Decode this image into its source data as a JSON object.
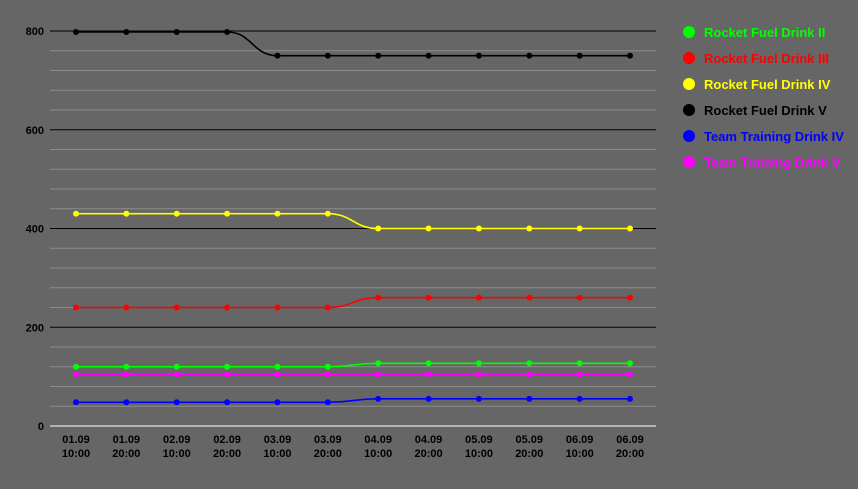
{
  "chart_data": {
    "type": "line",
    "title": "",
    "xlabel": "",
    "ylabel": "",
    "ylim": [
      0,
      800
    ],
    "y_ticks": [
      "0",
      "200",
      "400",
      "600",
      "800"
    ],
    "minor_grid_step": 40,
    "grid": true,
    "background": "#666666",
    "legend_position": "right",
    "categories": [
      [
        "01.09",
        "10:00"
      ],
      [
        "01.09",
        "20:00"
      ],
      [
        "02.09",
        "10:00"
      ],
      [
        "02.09",
        "20:00"
      ],
      [
        "03.09",
        "10:00"
      ],
      [
        "03.09",
        "20:00"
      ],
      [
        "04.09",
        "10:00"
      ],
      [
        "04.09",
        "20:00"
      ],
      [
        "05.09",
        "10:00"
      ],
      [
        "05.09",
        "20:00"
      ],
      [
        "06.09",
        "10:00"
      ],
      [
        "06.09",
        "20:00"
      ]
    ],
    "series": [
      {
        "name": "Rocket Fuel Drink II",
        "color": "#00ff00",
        "values": [
          120,
          120,
          120,
          120,
          120,
          120,
          127,
          127,
          127,
          127,
          127,
          127
        ]
      },
      {
        "name": "Rocket Fuel Drink III",
        "color": "#ff0000",
        "values": [
          240,
          240,
          240,
          240,
          240,
          240,
          260,
          260,
          260,
          260,
          260,
          260
        ]
      },
      {
        "name": "Rocket Fuel Drink IV",
        "color": "#ffff00",
        "values": [
          430,
          430,
          430,
          430,
          430,
          430,
          400,
          400,
          400,
          400,
          400,
          400
        ]
      },
      {
        "name": "Rocket Fuel Drink V",
        "color": "#000000",
        "values": [
          798,
          798,
          798,
          798,
          750,
          750,
          750,
          750,
          750,
          750,
          750,
          750
        ]
      },
      {
        "name": "Team Training Drink IV",
        "color": "#0000ff",
        "values": [
          48,
          48,
          48,
          48,
          48,
          48,
          55,
          55,
          55,
          55,
          55,
          55
        ]
      },
      {
        "name": "Team Training Drink V",
        "color": "#ff00ff",
        "values": [
          105,
          105,
          105,
          105,
          105,
          105,
          105,
          105,
          105,
          105,
          105,
          105
        ]
      }
    ]
  }
}
